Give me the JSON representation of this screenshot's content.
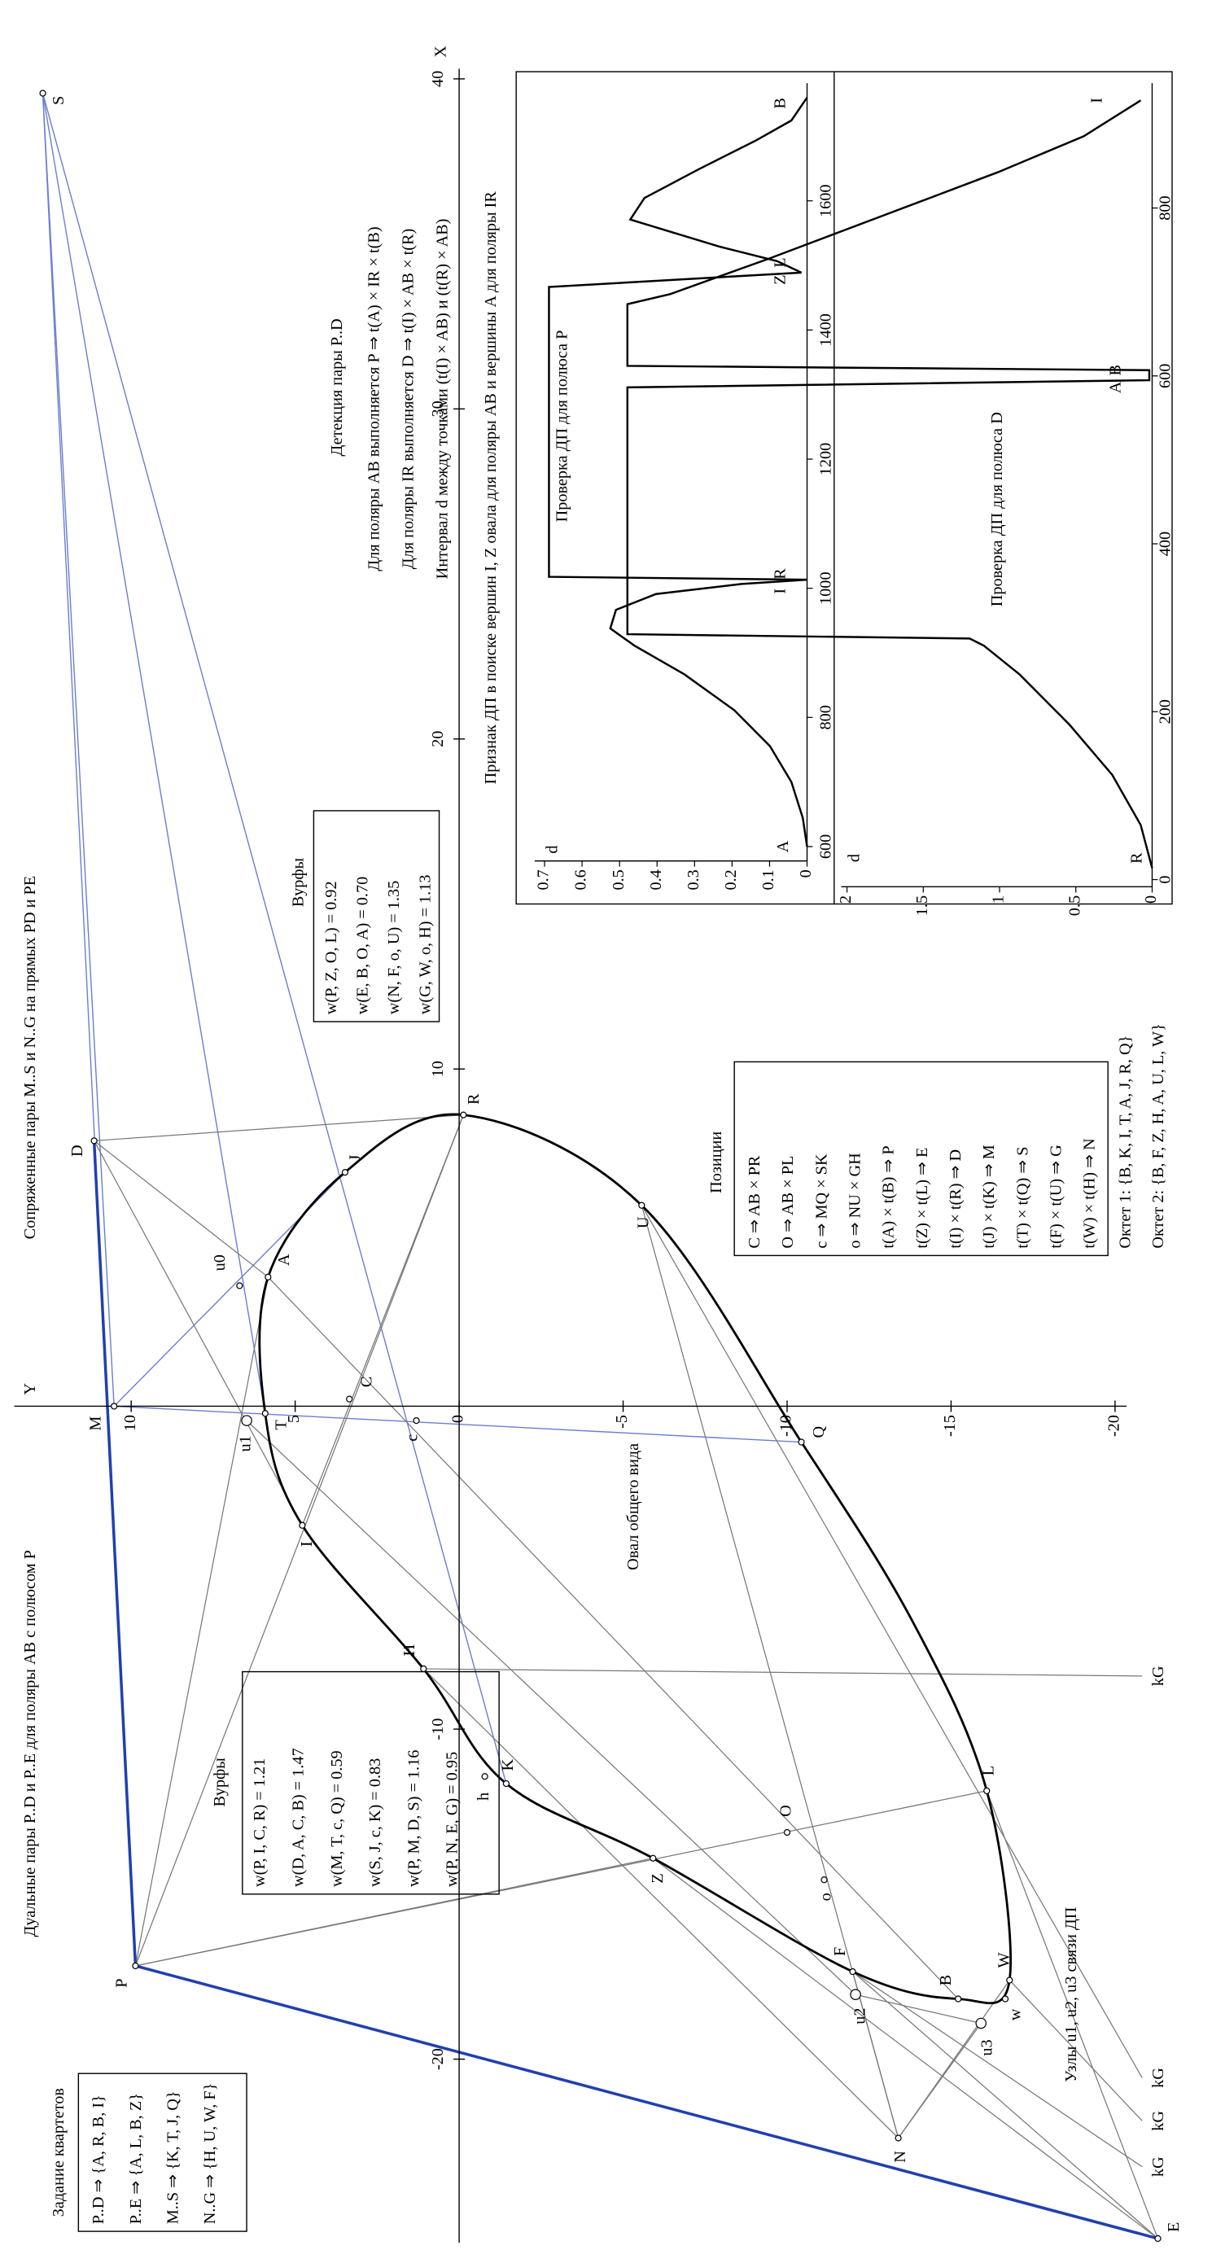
{
  "title": "Сопряженные пары M..S и N..G на прямых PD и PE",
  "dual_title": "Дуальные пары P..D и P..E для поляры AB с полюсом P",
  "quartets": {
    "title": "Задание квартетов",
    "items": [
      "P..D ⇒ {A, R, B, I}",
      "P..E ⇒ {A, L, B, Z}",
      "M..S ⇒ {K, T, J, Q}",
      "N..G ⇒ {H, U, W, F}"
    ]
  },
  "wurfs_left": {
    "title": "Вурфы",
    "items": [
      "w(P, I, C, R) = 1.21",
      "w(D, A, C, B) = 1.47",
      "w(M, T, c, Q) = 0.59",
      "w(S, J, c, K) = 0.83",
      "w(P, M, D, S) = 1.16",
      "w(P, N, E, G) = 0.95"
    ]
  },
  "wurfs_right": {
    "title": "Вурфы",
    "items": [
      "w(P, Z, O, L) = 0.92",
      "w(E, B, O, A) = 0.70",
      "w(N, F, o, U) = 1.35",
      "w(G, W, o, H) = 1.13"
    ]
  },
  "detection": {
    "title": "Детекция пары P..D",
    "lines": [
      "Для поляры AB выполняется P ⇒ t(A) × IR × t(B)",
      "Для поляры IR выполняется D ⇒ t(I) × AB × t(R)",
      "Интервал d между точками (t(I) × AB) и (t(R) × AB)"
    ]
  },
  "sign": "Признак ДП в поиске вершин I, Z овала для поляры AB и вершины A для поляры IR",
  "positions": {
    "title": "Позиции",
    "items": [
      "C ⇒ AB × PR",
      "O ⇒ AB × PL",
      "c ⇒ MQ × SK",
      "o ⇒ NU × GH",
      "t(A) × t(B) ⇒ P",
      "t(Z) × t(L) ⇒ E",
      "t(I) × t(R) ⇒ D",
      "t(J) × t(K) ⇒ M",
      "t(T) × t(Q) ⇒ S",
      "t(F) × t(U) ⇒ G",
      "t(W) × t(H) ⇒ N"
    ]
  },
  "octets": [
    "Октет 1: {B, K, I, T, A, J, R, Q}",
    "Октет 2: {B, F, Z, H, A, U, L, W}"
  ],
  "oval_label": "Овал общего вида",
  "nodes_note": "Узлы u1, u2, u3 связи ДП",
  "axes": {
    "x_label": "X",
    "y_label": "Y",
    "xticks": [
      -20,
      -10,
      10,
      20,
      30,
      40
    ],
    "yticks": [
      -20,
      -15,
      -10,
      -5,
      0,
      5,
      10
    ]
  },
  "points": [
    "S",
    "D",
    "M",
    "P",
    "E",
    "N",
    "R",
    "Q",
    "U",
    "A",
    "J",
    "C",
    "c",
    "T",
    "u1",
    "u0",
    "I",
    "H",
    "K",
    "h",
    "Z",
    "O",
    "o",
    "L",
    "F",
    "u2",
    "B",
    "W",
    "w",
    "u3"
  ],
  "kG": [
    "kG",
    "kG",
    "kG",
    "kG"
  ],
  "inset_p": {
    "title": "Проверка ДП для полюса P",
    "axis_label": "d",
    "xticks": [
      600,
      800,
      1000,
      1200,
      1400,
      1600
    ],
    "yticks": [
      0,
      0.1,
      0.2,
      0.3,
      0.4,
      0.5,
      0.6,
      0.7
    ],
    "points": [
      "A",
      "I",
      "R",
      "Z",
      "L",
      "B"
    ]
  },
  "inset_d": {
    "title": "Проверка ДП для полюса D",
    "axis_label": "d",
    "xticks": [
      0,
      200,
      400,
      600,
      800
    ],
    "yticks": [
      0,
      0.5,
      1,
      1.5,
      2
    ],
    "points": [
      "R",
      "A",
      "B",
      "I"
    ]
  }
}
